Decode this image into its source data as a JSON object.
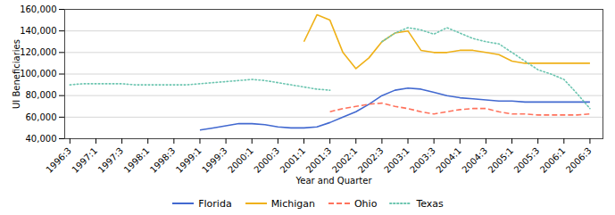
{
  "chart_data": {
    "type": "line",
    "xlabel": "Year and Quarter",
    "ylabel": "UI Beneficiaries",
    "x": [
      1996.5,
      1996.75,
      1997.0,
      1997.25,
      1997.5,
      1997.75,
      1998.0,
      1998.25,
      1998.5,
      1998.75,
      1999.0,
      1999.25,
      1999.5,
      1999.75,
      2000.0,
      2000.25,
      2000.5,
      2000.75,
      2001.0,
      2001.25,
      2001.5,
      2001.75,
      2002.0,
      2002.25,
      2002.5,
      2002.75,
      2003.0,
      2003.25,
      2003.5,
      2003.75,
      2004.0,
      2004.25,
      2004.5,
      2004.75,
      2005.0,
      2005.25,
      2005.5,
      2005.75,
      2006.0,
      2006.25,
      2006.5
    ],
    "series": [
      {
        "name": "Florida",
        "line_style": "solid",
        "values": [
          null,
          null,
          null,
          null,
          null,
          null,
          null,
          null,
          null,
          null,
          48000,
          50000,
          52000,
          54000,
          54000,
          53000,
          51000,
          50000,
          50000,
          51000,
          55000,
          60000,
          65000,
          72000,
          80000,
          85000,
          87000,
          86000,
          83000,
          80000,
          78000,
          77000,
          76000,
          75000,
          75000,
          74000,
          74000,
          74000,
          74000,
          74000,
          74000
        ]
      },
      {
        "name": "Michigan",
        "line_style": "solid",
        "values": [
          null,
          null,
          null,
          null,
          null,
          null,
          null,
          null,
          null,
          null,
          null,
          null,
          null,
          null,
          null,
          null,
          null,
          null,
          130000,
          155000,
          150000,
          120000,
          105000,
          115000,
          130000,
          138000,
          140000,
          122000,
          120000,
          120000,
          122000,
          122000,
          120000,
          118000,
          112000,
          110000,
          110000,
          110000,
          110000,
          110000,
          110000
        ]
      },
      {
        "name": "Ohio",
        "line_style": "dashed",
        "values": [
          null,
          null,
          null,
          null,
          null,
          null,
          null,
          null,
          null,
          null,
          null,
          null,
          null,
          null,
          null,
          null,
          null,
          null,
          null,
          null,
          65000,
          68000,
          70000,
          72000,
          73000,
          70000,
          68000,
          65000,
          63000,
          65000,
          67000,
          68000,
          68000,
          65000,
          63000,
          63000,
          62000,
          62000,
          62000,
          62000,
          63000
        ]
      },
      {
        "name": "Texas",
        "line_style": "dotted",
        "values": [
          90000,
          91000,
          91000,
          91000,
          91000,
          90000,
          90000,
          90000,
          90000,
          90000,
          91000,
          92000,
          93000,
          94000,
          95000,
          94000,
          92000,
          90000,
          88000,
          86000,
          85000,
          null,
          null,
          null,
          130000,
          138000,
          143000,
          141000,
          137000,
          143000,
          138000,
          133000,
          130000,
          128000,
          120000,
          112000,
          104000,
          100000,
          95000,
          82000,
          68000
        ]
      }
    ],
    "xlim": [
      1996.4,
      2006.75
    ],
    "xticks": [
      {
        "value": 1996.5,
        "label": "1996:3"
      },
      {
        "value": 1997.0,
        "label": "1997:1"
      },
      {
        "value": 1997.5,
        "label": "1997:3"
      },
      {
        "value": 1998.0,
        "label": "1998:1"
      },
      {
        "value": 1998.5,
        "label": "1998:3"
      },
      {
        "value": 1999.0,
        "label": "1999:1"
      },
      {
        "value": 1999.5,
        "label": "1999:3"
      },
      {
        "value": 2000.0,
        "label": "2000:1"
      },
      {
        "value": 2000.5,
        "label": "2000:3"
      },
      {
        "value": 2001.0,
        "label": "2001:1"
      },
      {
        "value": 2001.5,
        "label": "2001:3"
      },
      {
        "value": 2002.0,
        "label": "2002:1"
      },
      {
        "value": 2002.5,
        "label": "2002:3"
      },
      {
        "value": 2003.0,
        "label": "2003:1"
      },
      {
        "value": 2003.5,
        "label": "2003:3"
      },
      {
        "value": 2004.0,
        "label": "2004:1"
      },
      {
        "value": 2004.5,
        "label": "2004:3"
      },
      {
        "value": 2005.0,
        "label": "2005:1"
      },
      {
        "value": 2005.5,
        "label": "2005:3"
      },
      {
        "value": 2006.0,
        "label": "2006:1"
      },
      {
        "value": 2006.5,
        "label": "2006:3"
      }
    ],
    "ylim": [
      40000,
      160000
    ],
    "yticks": [
      {
        "value": 40000,
        "label": "40,000"
      },
      {
        "value": 60000,
        "label": "60,000"
      },
      {
        "value": 80000,
        "label": "80,000"
      },
      {
        "value": 100000,
        "label": "100,000"
      },
      {
        "value": 120000,
        "label": "120,000"
      },
      {
        "value": 140000,
        "label": "140,000"
      },
      {
        "value": 160000,
        "label": "160,000"
      }
    ],
    "grid": true,
    "legend": "bottom"
  }
}
